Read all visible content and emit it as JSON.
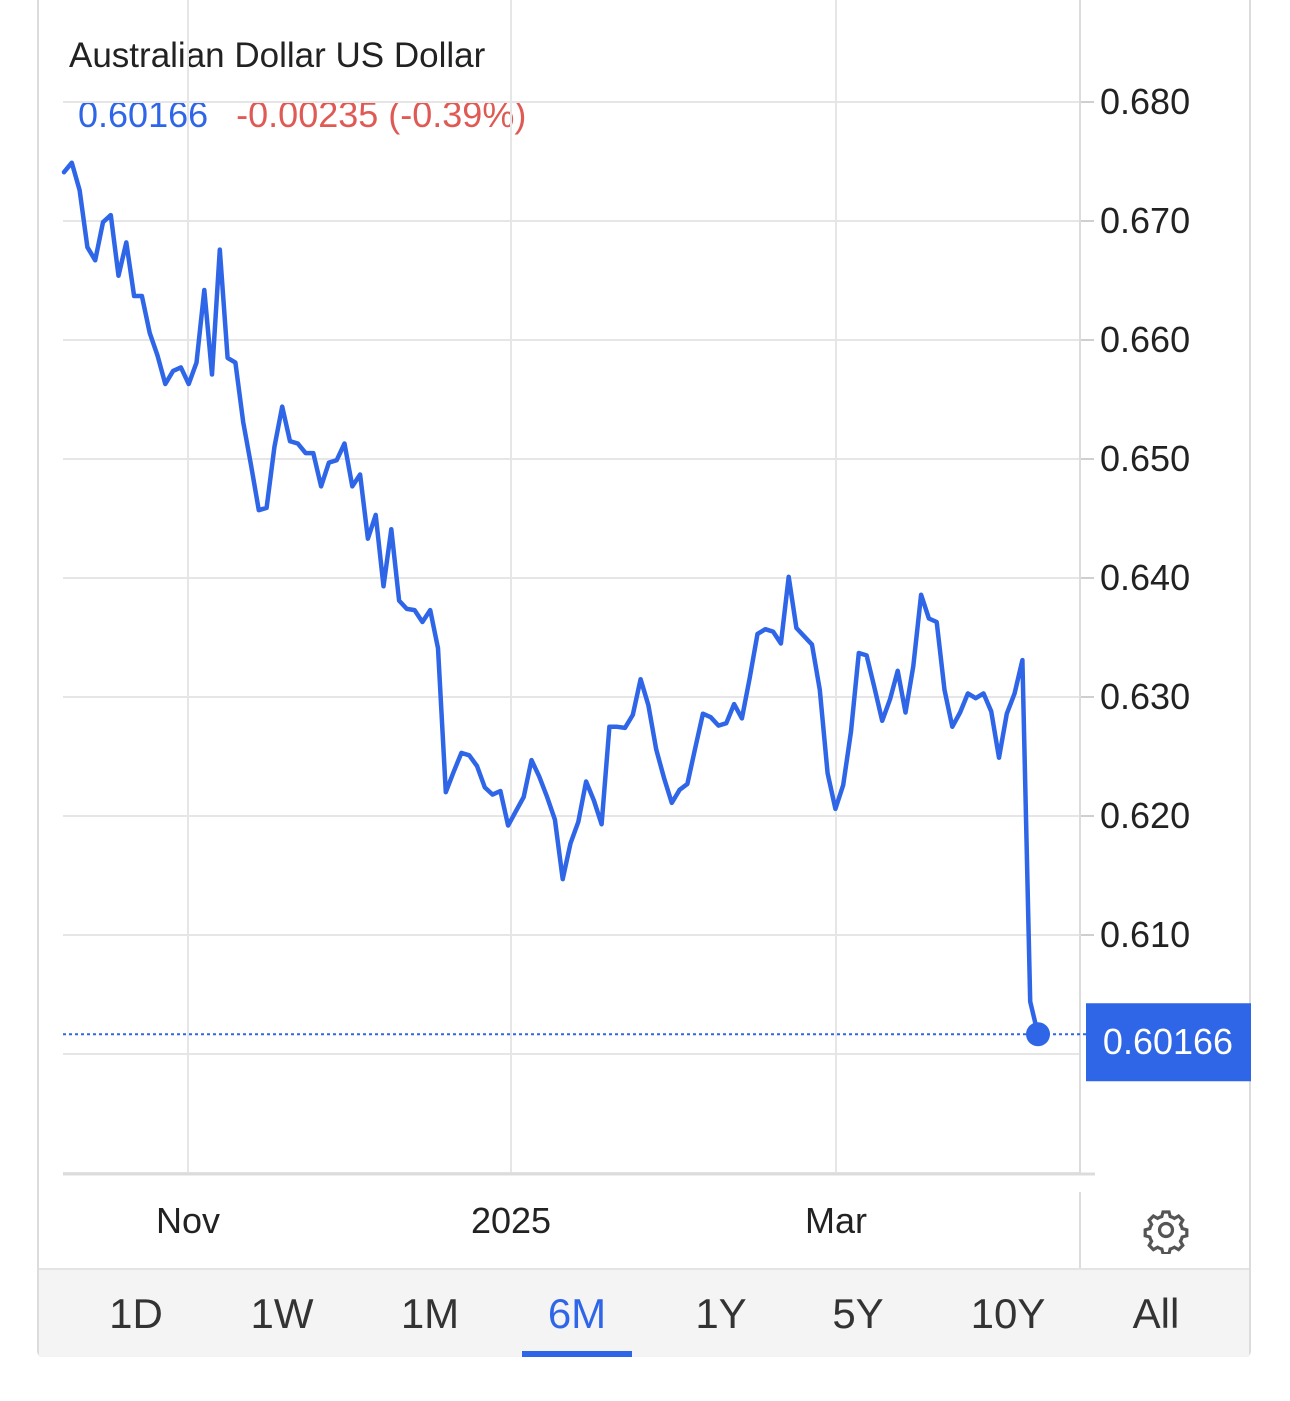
{
  "header": {
    "title": "Australian Dollar US Dollar",
    "last": "0.60166",
    "change": "-0.00235 (-0.39%)"
  },
  "colors": {
    "line": "#2f66e8",
    "negative": "#e05a55",
    "grid": "#e6e6e6",
    "badge_bg": "#2f66e8"
  },
  "chart_data": {
    "type": "line",
    "ylim": [
      0.592,
      0.682
    ],
    "y_ticks": [
      "0.680",
      "0.670",
      "0.660",
      "0.650",
      "0.640",
      "0.630",
      "0.620",
      "0.610"
    ],
    "x_tick_labels": [
      "Nov",
      "2025",
      "Mar"
    ],
    "grid": true,
    "last_value_label": "0.60166",
    "series": [
      {
        "values": [
          0.6741,
          0.6749,
          0.6726,
          0.6678,
          0.6667,
          0.6699,
          0.6705,
          0.6654,
          0.6682,
          0.6637,
          0.6637,
          0.6606,
          0.6587,
          0.6563,
          0.6574,
          0.6577,
          0.6563,
          0.6581,
          0.6642,
          0.6571,
          0.6676,
          0.6585,
          0.6581,
          0.6531,
          0.6495,
          0.6457,
          0.6459,
          0.651,
          0.6544,
          0.6515,
          0.6513,
          0.6505,
          0.6505,
          0.6477,
          0.6497,
          0.6499,
          0.6513,
          0.6477,
          0.6487,
          0.6433,
          0.6453,
          0.6393,
          0.6441,
          0.6381,
          0.6374,
          0.6373,
          0.6363,
          0.6373,
          0.6341,
          0.622,
          0.6237,
          0.6253,
          0.6251,
          0.6242,
          0.6224,
          0.6218,
          0.6221,
          0.6192,
          0.6204,
          0.6216,
          0.6247,
          0.6233,
          0.6216,
          0.6197,
          0.6147,
          0.6177,
          0.6195,
          0.6229,
          0.6213,
          0.6193,
          0.6275,
          0.6275,
          0.6274,
          0.6285,
          0.6315,
          0.6293,
          0.6256,
          0.6232,
          0.6211,
          0.6222,
          0.6227,
          0.6257,
          0.6286,
          0.6283,
          0.6276,
          0.6278,
          0.6294,
          0.6282,
          0.6316,
          0.6353,
          0.6357,
          0.6355,
          0.6345,
          0.6401,
          0.6358,
          0.6351,
          0.6344,
          0.6306,
          0.6236,
          0.6206,
          0.6226,
          0.6271,
          0.6337,
          0.6335,
          0.6308,
          0.628,
          0.6298,
          0.6322,
          0.6287,
          0.6326,
          0.6386,
          0.6366,
          0.6363,
          0.6306,
          0.6275,
          0.6287,
          0.6303,
          0.6299,
          0.6303,
          0.6288,
          0.6249,
          0.6286,
          0.6303,
          0.6331,
          0.6044,
          0.60166
        ]
      }
    ]
  },
  "tabs": [
    {
      "label": "1D"
    },
    {
      "label": "1W"
    },
    {
      "label": "1M"
    },
    {
      "label": "6M"
    },
    {
      "label": "1Y"
    },
    {
      "label": "5Y"
    },
    {
      "label": "10Y"
    },
    {
      "label": "All"
    }
  ],
  "active_tab": "6M",
  "icons": {
    "settings": "gear-icon"
  }
}
